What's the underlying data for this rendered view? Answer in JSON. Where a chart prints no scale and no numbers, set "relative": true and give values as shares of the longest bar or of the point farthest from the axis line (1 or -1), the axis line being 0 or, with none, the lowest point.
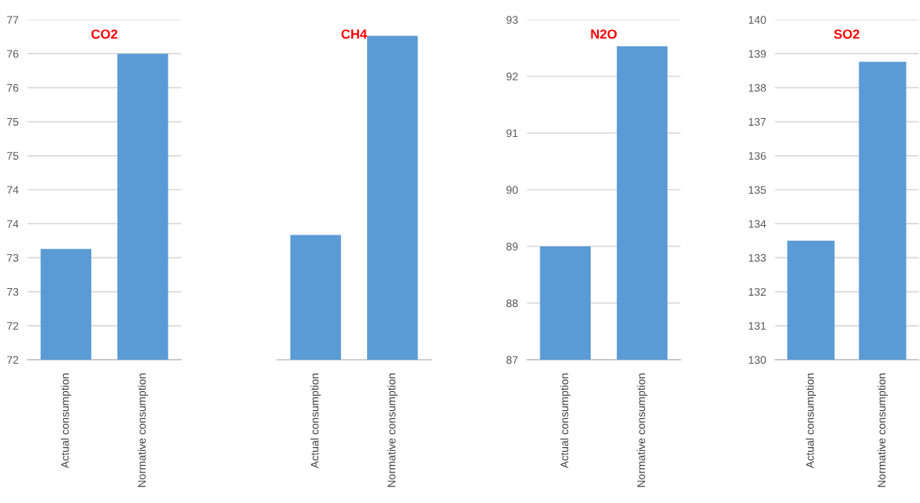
{
  "chart_data": [
    {
      "type": "bar",
      "title": "CO2",
      "categories": [
        "Actual consumption",
        "Normative consumption"
      ],
      "values": [
        73.13,
        76.0
      ],
      "color": "#5b9bd5",
      "ylim": [
        71.5,
        76.5
      ],
      "yticks": [
        {
          "value": 71.5,
          "label": "72"
        },
        {
          "value": 72.0,
          "label": "72"
        },
        {
          "value": 72.5,
          "label": "73"
        },
        {
          "value": 73.0,
          "label": "73"
        },
        {
          "value": 73.5,
          "label": "74"
        },
        {
          "value": 74.0,
          "label": "74"
        },
        {
          "value": 74.5,
          "label": "75"
        },
        {
          "value": 75.0,
          "label": "75"
        },
        {
          "value": 75.5,
          "label": "76"
        },
        {
          "value": 76.0,
          "label": "76"
        },
        {
          "value": 76.5,
          "label": "77"
        }
      ],
      "grid": "y"
    },
    {
      "type": "bar",
      "title": "CH4",
      "categories": [
        "Actual consumption",
        "Normative consumption"
      ],
      "values": [
        0.385,
        1
      ],
      "color": "#5b9bd5",
      "relative": true
    },
    {
      "type": "bar",
      "title": "N2O",
      "categories": [
        "Actual consumption",
        "Normative consumption"
      ],
      "values": [
        89.0,
        92.53
      ],
      "color": "#5b9bd5",
      "ylim": [
        87,
        93
      ],
      "yticks": [
        87,
        88,
        89,
        90,
        91,
        92,
        93
      ],
      "grid": "y"
    },
    {
      "type": "bar",
      "title": "SO2",
      "categories": [
        "Actual consumption",
        "Normative consumption"
      ],
      "values": [
        133.5,
        138.76
      ],
      "color": "#5b9bd5",
      "ylim": [
        130,
        140
      ],
      "yticks": [
        130,
        131,
        132,
        133,
        134,
        135,
        136,
        137,
        138,
        139,
        140
      ],
      "grid": "y"
    }
  ]
}
